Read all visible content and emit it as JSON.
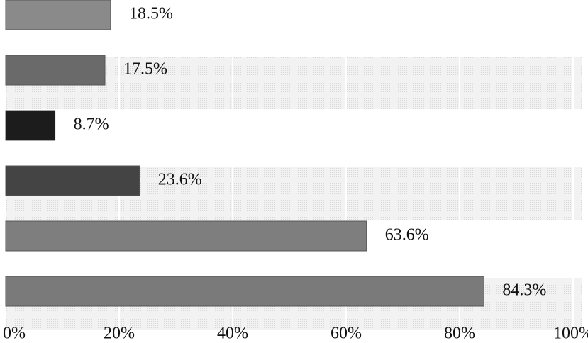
{
  "chart_data": {
    "type": "bar",
    "orientation": "horizontal",
    "categories": [
      null,
      null,
      null,
      null,
      null,
      null
    ],
    "values": [
      18.5,
      17.5,
      8.7,
      23.6,
      63.6,
      84.3
    ],
    "value_labels": [
      "18.5%",
      "17.5%",
      "8.7%",
      "23.6%",
      "63.6%",
      "84.3%"
    ],
    "colors": [
      "#8a8a8a",
      "#6a6a6a",
      "#1c1c1c",
      "#444444",
      "#7e7e7e",
      "#7a7a7a"
    ],
    "xlim": [
      0,
      100
    ],
    "xticks": [
      {
        "value": 0,
        "label": "0%"
      },
      {
        "value": 20,
        "label": "20%"
      },
      {
        "value": 40,
        "label": "40%"
      },
      {
        "value": 60,
        "label": "60%"
      },
      {
        "value": 80,
        "label": "80%"
      },
      {
        "value": 100,
        "label": "100%"
      }
    ],
    "grid": true
  }
}
